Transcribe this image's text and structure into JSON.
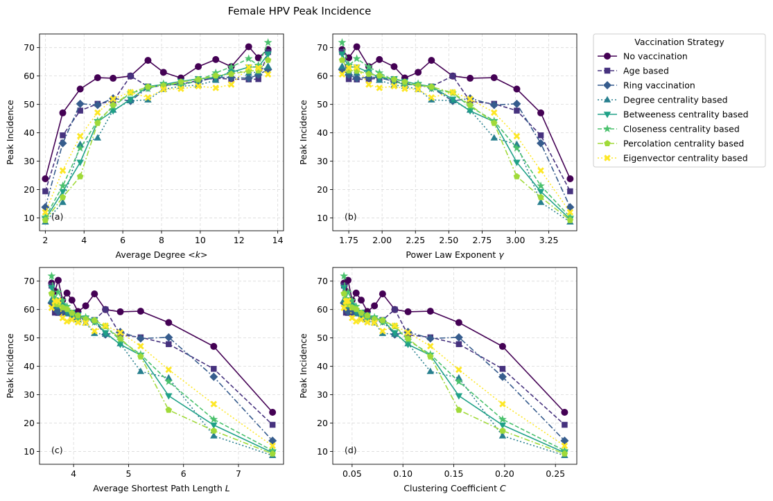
{
  "figure": {
    "title": "Female HPV Peak Incidence"
  },
  "legend": {
    "title": "Vaccination Strategy"
  },
  "chart_data": {
    "type": "line",
    "series_styles": [
      {
        "name": "No vaccination",
        "color": "#440154",
        "dash": "",
        "marker": "circle"
      },
      {
        "name": "Age based",
        "color": "#46327e",
        "dash": "6,3",
        "marker": "square"
      },
      {
        "name": "Ring vaccination",
        "color": "#365c8d",
        "dash": "8,3,2,3",
        "marker": "diamond"
      },
      {
        "name": "Degree centrality based",
        "color": "#277f8e",
        "dash": "2,3",
        "marker": "triangle-up"
      },
      {
        "name": "Betweeness centrality based",
        "color": "#1fa187",
        "dash": "",
        "marker": "triangle-down"
      },
      {
        "name": "Closeness centrality based",
        "color": "#4ac16d",
        "dash": "6,3",
        "marker": "star"
      },
      {
        "name": "Percolation centrality based",
        "color": "#a0da39",
        "dash": "8,3,2,3",
        "marker": "pentagon"
      },
      {
        "name": "Eigenvector centrality based",
        "color": "#fde725",
        "dash": "2,3",
        "marker": "x"
      }
    ],
    "values": [
      [
        23.8,
        47.0,
        55.4,
        59.4,
        59.2,
        60.0,
        65.5,
        61.3,
        59.3,
        63.3,
        65.8,
        63.3,
        70.3,
        66.4,
        69.3
      ],
      [
        19.4,
        39.1,
        47.8,
        50.2,
        51.1,
        60.0,
        56.3,
        56.7,
        57.1,
        58.4,
        59.2,
        58.9,
        58.8,
        58.9,
        68.4
      ],
      [
        13.8,
        36.3,
        50.2,
        49.8,
        52.1,
        51.2,
        55.9,
        56.7,
        57.3,
        58.0,
        59.5,
        59.5,
        59.2,
        60.4,
        62.3
      ],
      [
        8.6,
        15.5,
        35.9,
        38.2,
        48.0,
        51.3,
        51.6,
        55.3,
        56.4,
        56.8,
        58.5,
        62.0,
        61.0,
        61.4,
        63.4
      ],
      [
        9.6,
        19.3,
        29.6,
        43.9,
        47.7,
        51.8,
        56.3,
        57.0,
        58.1,
        59.0,
        59.5,
        61.3,
        63.1,
        63.2,
        67.7
      ],
      [
        10.3,
        21.3,
        34.6,
        44.2,
        49.2,
        54.0,
        55.5,
        57.3,
        56.7,
        58.4,
        61.1,
        63.2,
        66.1,
        63.8,
        71.8
      ],
      [
        9.2,
        17.3,
        24.6,
        43.4,
        49.8,
        54.1,
        56.2,
        56.6,
        57.9,
        58.8,
        60.1,
        60.7,
        61.8,
        61.9,
        65.6
      ],
      [
        12.0,
        26.7,
        38.8,
        47.1,
        51.9,
        54.3,
        52.4,
        55.3,
        55.5,
        56.4,
        55.8,
        57.0,
        63.1,
        62.9,
        60.6
      ]
    ],
    "subplots": [
      {
        "label": "(a)",
        "xlabel": "Average Degree $<k>$",
        "ylabel": "Peak Incidence",
        "xlim": [
          1.7,
          14.3
        ],
        "ylim": [
          5.5,
          74.8
        ],
        "xticks": [
          2,
          4,
          6,
          8,
          10,
          12,
          14
        ],
        "xtick_labels": [
          "2",
          "4",
          "6",
          "8",
          "10",
          "12",
          "14"
        ],
        "yticks": [
          10,
          20,
          30,
          40,
          50,
          60,
          70
        ],
        "ytick_labels": [
          "10",
          "20",
          "30",
          "40",
          "50",
          "60",
          "70"
        ],
        "x": [
          2.0,
          2.9,
          3.8,
          4.7,
          5.5,
          6.4,
          7.3,
          8.1,
          9.0,
          9.9,
          10.8,
          11.6,
          12.5,
          13.0,
          13.5
        ]
      },
      {
        "label": "(b)",
        "xlabel": "Power Law Exponent $\\gamma$",
        "ylabel": "Peak Incidence",
        "xlim": [
          1.63,
          3.46
        ],
        "ylim": [
          5.5,
          74.8
        ],
        "xticks": [
          1.75,
          2.0,
          2.25,
          2.5,
          2.75,
          3.0,
          3.25
        ],
        "xtick_labels": [
          "1.75",
          "2.00",
          "2.25",
          "2.50",
          "2.75",
          "3.00",
          "3.25"
        ],
        "yticks": [
          10,
          20,
          30,
          40,
          50,
          60,
          70
        ],
        "ytick_labels": [
          "10",
          "20",
          "30",
          "40",
          "50",
          "60",
          "70"
        ],
        "x": [
          3.41,
          3.19,
          3.01,
          2.84,
          2.66,
          2.53,
          2.37,
          2.27,
          2.17,
          2.09,
          1.98,
          1.9,
          1.81,
          1.75,
          1.7
        ]
      },
      {
        "label": "(c)",
        "xlabel": "Average Shortest Path Length $L$",
        "ylabel": "Peak Incidence",
        "xlim": [
          3.38,
          7.82
        ],
        "ylim": [
          5.5,
          74.8
        ],
        "xticks": [
          4,
          5,
          6,
          7
        ],
        "xtick_labels": [
          "4",
          "5",
          "6",
          "7"
        ],
        "yticks": [
          10,
          20,
          30,
          40,
          50,
          60,
          70
        ],
        "ytick_labels": [
          "10",
          "20",
          "30",
          "40",
          "50",
          "60",
          "70"
        ],
        "x": [
          7.62,
          6.55,
          5.73,
          5.22,
          4.85,
          4.58,
          4.38,
          4.22,
          4.08,
          3.97,
          3.88,
          3.8,
          3.72,
          3.66,
          3.6
        ]
      },
      {
        "label": "(d)",
        "xlabel": "Clustering Coefficient $C$",
        "ylabel": "Peak Incidence",
        "xlim": [
          0.031,
          0.271
        ],
        "ylim": [
          5.5,
          74.8
        ],
        "xticks": [
          0.05,
          0.1,
          0.15,
          0.2,
          0.25
        ],
        "xtick_labels": [
          "0.05",
          "0.10",
          "0.15",
          "0.20",
          "0.25"
        ],
        "yticks": [
          10,
          20,
          30,
          40,
          50,
          60,
          70
        ],
        "ytick_labels": [
          "10",
          "20",
          "30",
          "40",
          "50",
          "60",
          "70"
        ],
        "x": [
          0.259,
          0.198,
          0.155,
          0.127,
          0.105,
          0.092,
          0.08,
          0.072,
          0.065,
          0.059,
          0.054,
          0.05,
          0.046,
          0.044,
          0.042
        ]
      }
    ]
  }
}
